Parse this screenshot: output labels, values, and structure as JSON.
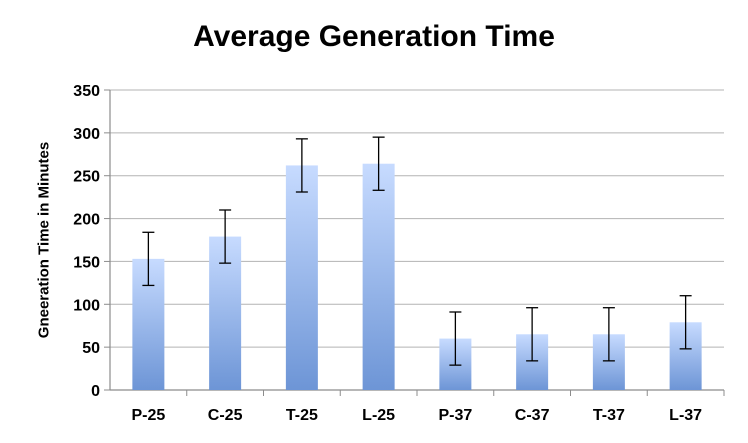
{
  "chart_data": {
    "type": "bar",
    "title": "Average Generation Time",
    "xlabel": "",
    "ylabel": "Gneeration Time in Minutes",
    "categories": [
      "P-25",
      "C-25",
      "T-25",
      "L-25",
      "P-37",
      "C-37",
      "T-37",
      "L-37"
    ],
    "values": [
      153,
      179,
      262,
      264,
      60,
      65,
      65,
      79
    ],
    "error": [
      31,
      31,
      31,
      31,
      31,
      31,
      31,
      31
    ],
    "ylim": [
      0,
      350
    ],
    "yticks": [
      "0",
      "50",
      "100",
      "150",
      "200",
      "250",
      "300",
      "350"
    ],
    "grid": true,
    "legend": "none"
  },
  "colors": {
    "bar_top": "#c7dbff",
    "bar_bottom": "#6d95d6",
    "grid": "#b3b3b3",
    "axis": "#8c8c8c",
    "error_bar": "#000000"
  }
}
